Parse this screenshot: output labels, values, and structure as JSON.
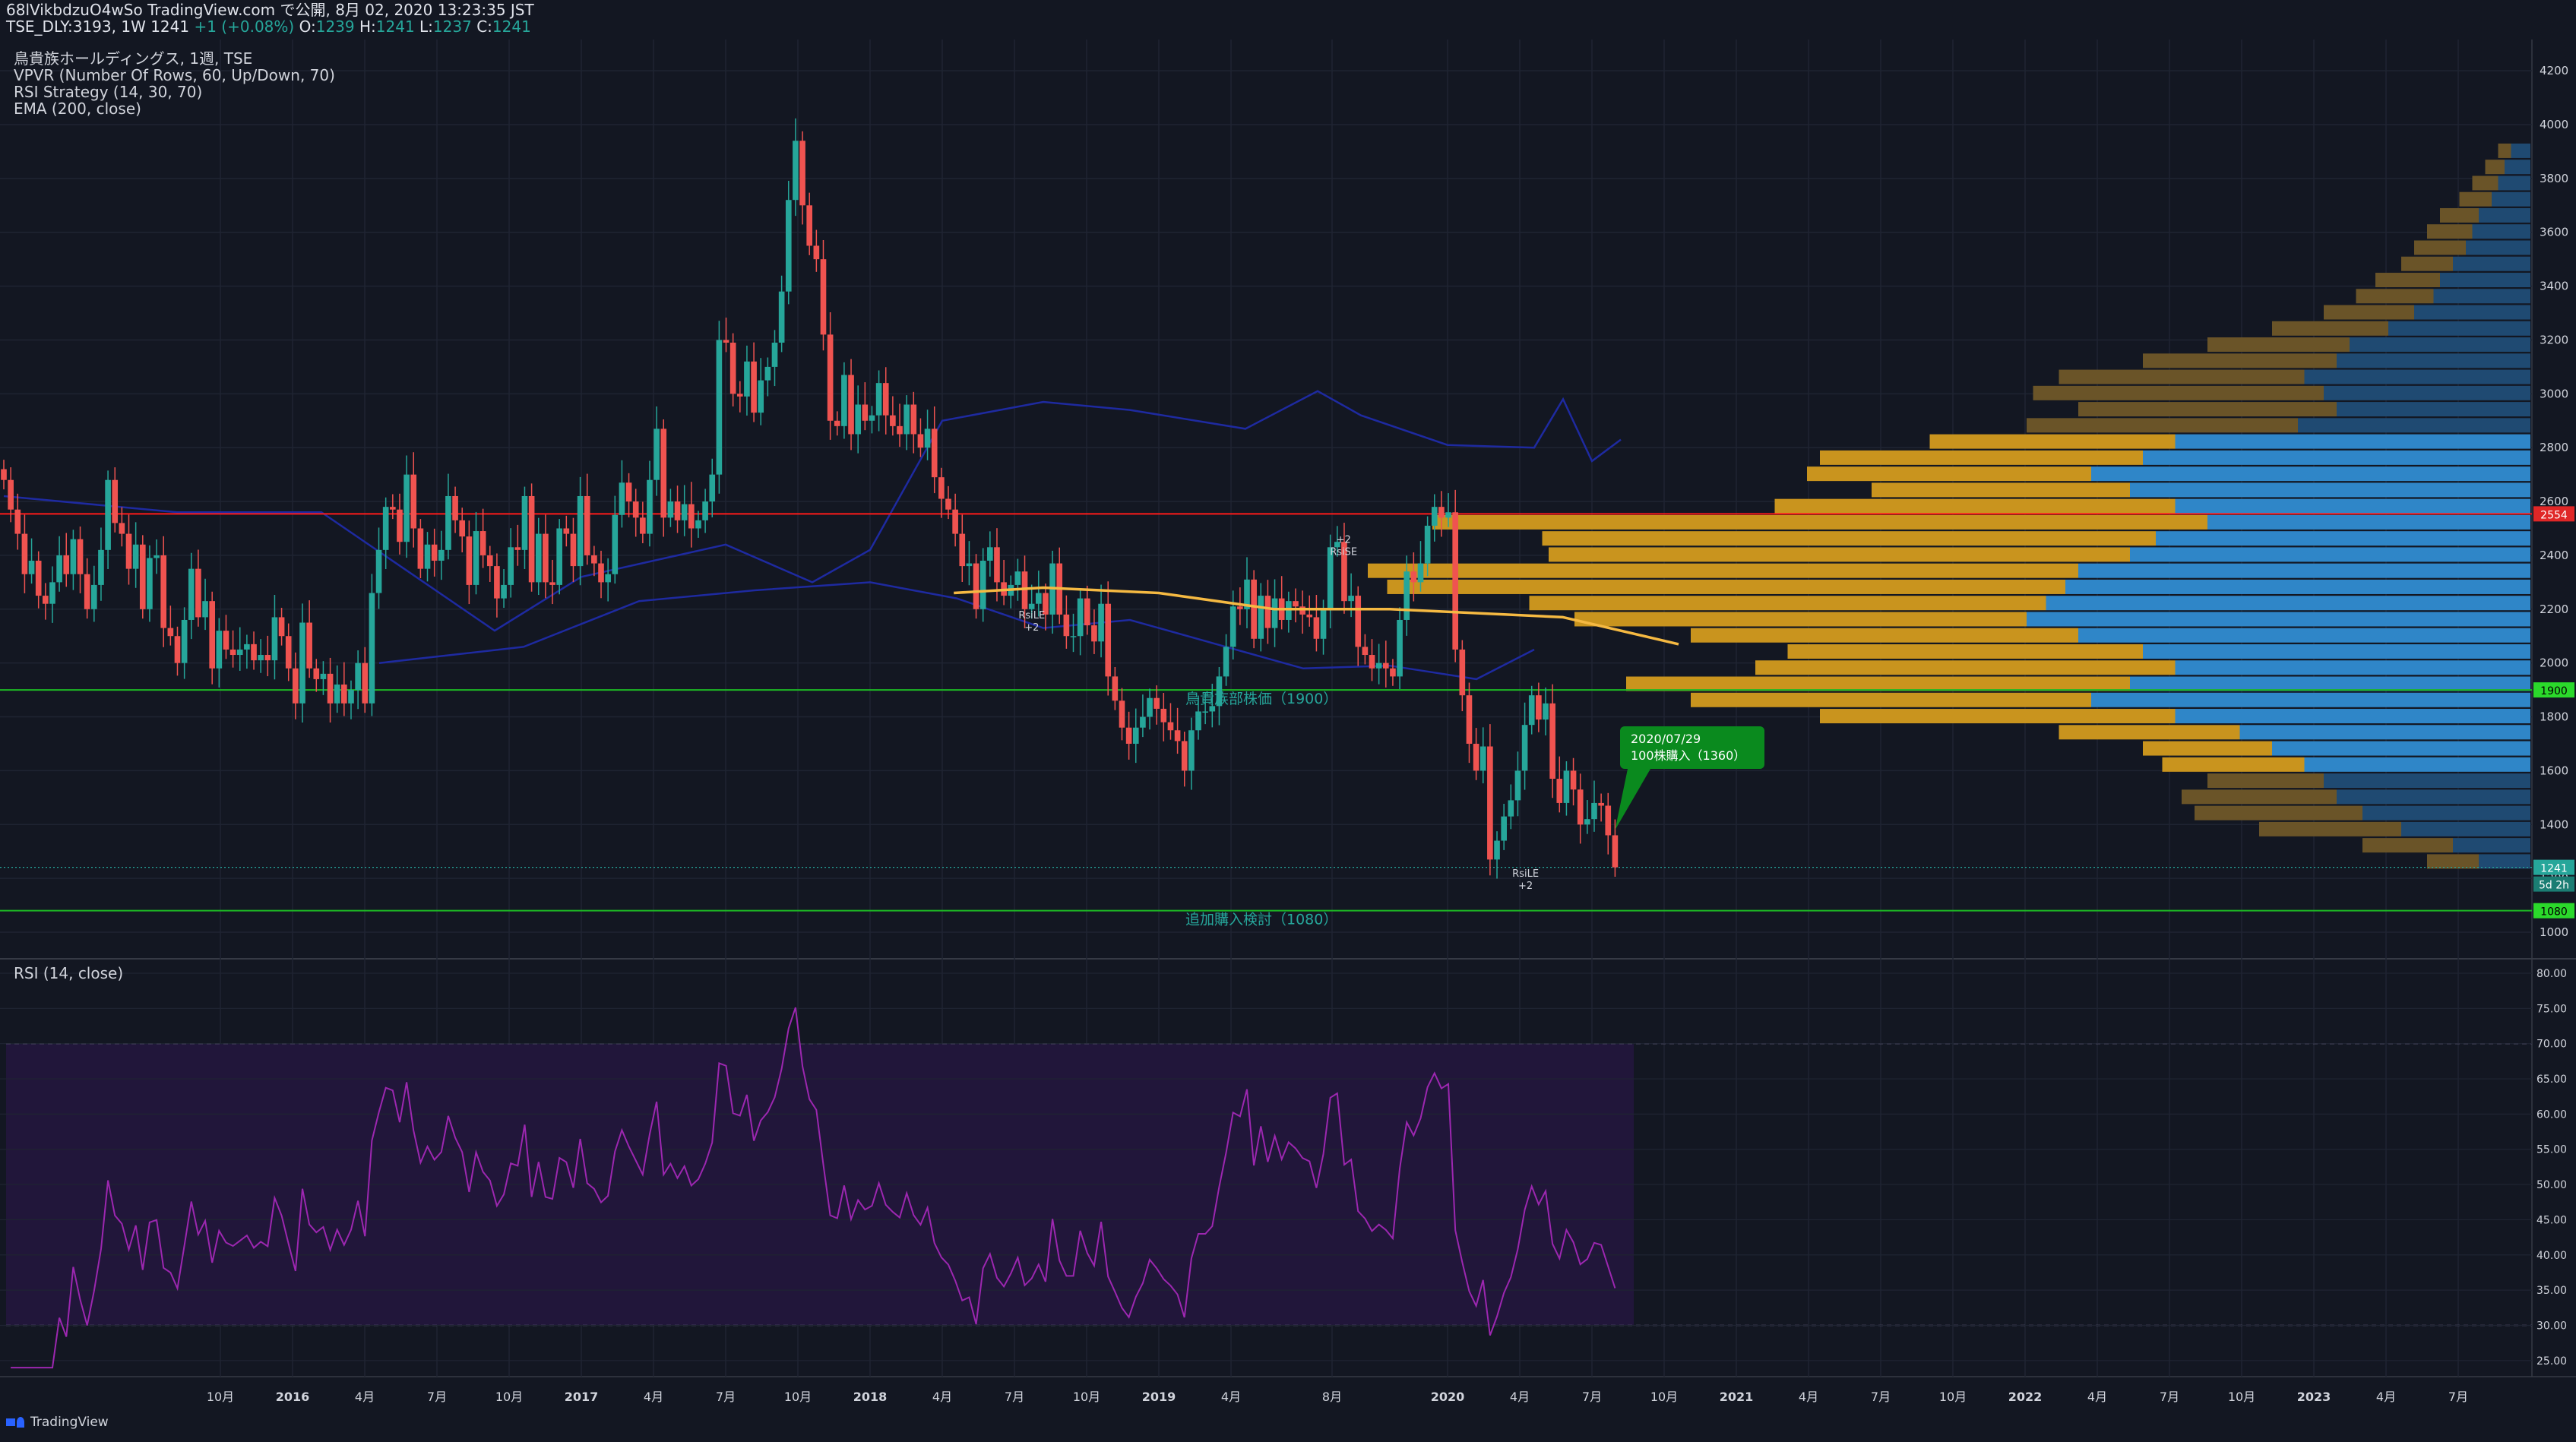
{
  "header": {
    "publish_line": "68lVikbdzuO4wSo TradingView.com で公開, 8月 02, 2020 13:23:35 JST",
    "quote_prefix": "TSE_DLY:3193, 1W 1241",
    "quote_change": "+1 (+0.08%)",
    "quote_o_label": "O:",
    "quote_o": "1239",
    "quote_h_label": "H:",
    "quote_h": "1241",
    "quote_l_label": "L:",
    "quote_l": "1237",
    "quote_c_label": "C:",
    "quote_c": "1241"
  },
  "legend": {
    "symbol": "鳥貴族ホールディングス, 1週, TSE",
    "vpvr": "VPVR (Number Of Rows, 60, Up/Down, 70)",
    "strategy": "RSI Strategy (14, 30, 70)",
    "ema": "EMA (200, close)",
    "rsi_pane": "RSI (14, close)"
  },
  "footer": {
    "brand": "TradingView"
  },
  "colors": {
    "background": "#131722",
    "up": "#26a69a",
    "down": "#ef5350",
    "ema": "#f5b942",
    "rsi": "#9c27b0",
    "bb": "#1e2aa0",
    "resistance": "#ff1a1a",
    "support": "#1db924",
    "vp_up": "#2f86c8",
    "vp_down": "#c9941e",
    "label_green": "#0a8a1e"
  },
  "chart_data": [
    {
      "type": "candlestick",
      "panel": "price",
      "x_tick_labels": [
        "10月",
        "2016",
        "4月",
        "7月",
        "10月",
        "2017",
        "4月",
        "7月",
        "10月",
        "2018",
        "4月",
        "7月",
        "10月",
        "2019",
        "4月",
        "8月",
        "2020",
        "4月",
        "7月",
        "10月",
        "2021",
        "4月",
        "7月",
        "10月",
        "2022",
        "4月",
        "7月",
        "10月",
        "2023",
        "4月",
        "7月"
      ],
      "y_ticks": [
        1000,
        1200,
        1400,
        1600,
        1800,
        2000,
        2200,
        2400,
        2600,
        2800,
        3000,
        3200,
        3400,
        3600,
        3800,
        4000,
        4200
      ],
      "ylim": [
        920,
        4270
      ],
      "closes": [
        2680,
        2570,
        2480,
        2330,
        2380,
        2250,
        2220,
        2300,
        2400,
        2330,
        2460,
        2330,
        2200,
        2290,
        2420,
        2680,
        2520,
        2480,
        2350,
        2440,
        2200,
        2390,
        2400,
        2130,
        2100,
        2000,
        2160,
        2350,
        2170,
        2230,
        1980,
        2120,
        2050,
        2030,
        2050,
        2070,
        2010,
        2030,
        2010,
        2170,
        2100,
        1980,
        1850,
        2150,
        1980,
        1940,
        1960,
        1850,
        1920,
        1850,
        1900,
        2000,
        1850,
        2260,
        2420,
        2580,
        2570,
        2450,
        2700,
        2500,
        2350,
        2440,
        2380,
        2420,
        2620,
        2530,
        2470,
        2290,
        2490,
        2400,
        2360,
        2240,
        2290,
        2430,
        2420,
        2620,
        2300,
        2480,
        2300,
        2290,
        2500,
        2480,
        2360,
        2620,
        2400,
        2370,
        2300,
        2330,
        2550,
        2670,
        2600,
        2540,
        2480,
        2680,
        2870,
        2540,
        2600,
        2530,
        2590,
        2500,
        2530,
        2600,
        2700,
        3200,
        3190,
        3000,
        2990,
        3120,
        2930,
        3050,
        3100,
        3190,
        3380,
        3720,
        3940,
        3700,
        3550,
        3500,
        3220,
        2900,
        2880,
        3070,
        2850,
        2960,
        2900,
        2920,
        3040,
        2920,
        2880,
        2850,
        2960,
        2850,
        2800,
        2870,
        2690,
        2610,
        2570,
        2480,
        2360,
        2370,
        2200,
        2380,
        2430,
        2300,
        2250,
        2290,
        2340,
        2200,
        2220,
        2260,
        2180,
        2370,
        2180,
        2100,
        2100,
        2240,
        2140,
        2080,
        2220,
        1950,
        1860,
        1760,
        1700,
        1760,
        1800,
        1870,
        1830,
        1780,
        1750,
        1710,
        1600,
        1750,
        1820,
        1820,
        1840,
        1950,
        2060,
        2210,
        2200,
        2310,
        2090,
        2250,
        2130,
        2240,
        2160,
        2230,
        2210,
        2180,
        2170,
        2090,
        2200,
        2430,
        2450,
        2230,
        2250,
        2060,
        2030,
        1980,
        2000,
        1980,
        1950,
        2160,
        2340,
        2300,
        2370,
        2510,
        2580,
        2540,
        2560,
        2050,
        1880,
        1700,
        1600,
        1690,
        1270,
        1340,
        1430,
        1490,
        1600,
        1770,
        1880,
        1790,
        1850,
        1570,
        1480,
        1600,
        1530,
        1400,
        1420,
        1480,
        1470,
        1360,
        1241
      ],
      "ema200_approx": [
        [
          2018.29,
          2260
        ],
        [
          2018.6,
          2280
        ],
        [
          2019.0,
          2260
        ],
        [
          2019.4,
          2200
        ],
        [
          2019.8,
          2200
        ],
        [
          2020.0,
          2190
        ],
        [
          2020.4,
          2170
        ],
        [
          2020.8,
          2070
        ]
      ],
      "volume_profile": {
        "bins_price": [
          3900,
          3840,
          3780,
          3720,
          3660,
          3600,
          3540,
          3480,
          3420,
          3360,
          3300,
          3240,
          3180,
          3120,
          3060,
          3000,
          2940,
          2880,
          2820,
          2760,
          2700,
          2640,
          2580,
          2520,
          2460,
          2400,
          2340,
          2280,
          2220,
          2160,
          2100,
          2040,
          1980,
          1920,
          1860,
          1800,
          1740,
          1680,
          1620,
          1560,
          1500,
          1440,
          1380,
          1320,
          1260
        ],
        "up_volume": [
          3,
          4,
          5,
          6,
          8,
          9,
          10,
          12,
          14,
          15,
          18,
          22,
          28,
          30,
          35,
          32,
          30,
          36,
          55,
          60,
          68,
          62,
          55,
          50,
          58,
          62,
          70,
          72,
          75,
          78,
          70,
          60,
          55,
          62,
          68,
          55,
          45,
          40,
          35,
          32,
          30,
          26,
          20,
          12,
          8
        ],
        "down_volume": [
          2,
          3,
          4,
          5,
          6,
          7,
          8,
          8,
          10,
          12,
          14,
          18,
          22,
          30,
          38,
          45,
          40,
          42,
          38,
          50,
          44,
          40,
          62,
          120,
          95,
          90,
          110,
          105,
          80,
          70,
          60,
          55,
          65,
          78,
          62,
          55,
          28,
          20,
          22,
          18,
          24,
          26,
          22,
          14,
          8
        ],
        "poc_price": 2554,
        "poc_label": "2554"
      },
      "support_labels": [
        {
          "price": 1900,
          "label": "鳥貴族部株価（1900）",
          "tag": "1900"
        },
        {
          "price": 1080,
          "label": "追加購入検討（1080）",
          "tag": "1080"
        }
      ],
      "last_price": {
        "value": 1241,
        "label": "1241",
        "countdown": "5d 2h"
      },
      "signals": [
        {
          "x": 2018.56,
          "price": 2200,
          "text1": "RsiLE",
          "text2": "+2"
        },
        {
          "x": 2019.64,
          "price": 2480,
          "text1": "+2",
          "text2": "RsiSE"
        },
        {
          "x": 2020.27,
          "price": 1240,
          "text1": "RsiLE",
          "text2": "+2"
        }
      ],
      "callout": {
        "line1": "2020/07/29",
        "line2": "100株購入（1360）",
        "anchor_x": 2020.58,
        "anchor_price": 1380
      }
    },
    {
      "type": "line",
      "panel": "rsi",
      "title": "RSI (14, close)",
      "y_ticks": [
        25,
        30,
        35,
        40,
        45,
        50,
        55,
        60,
        65,
        70,
        75,
        80
      ],
      "ylim": [
        22,
        82
      ],
      "overbought": 70,
      "oversold": 30
    }
  ]
}
